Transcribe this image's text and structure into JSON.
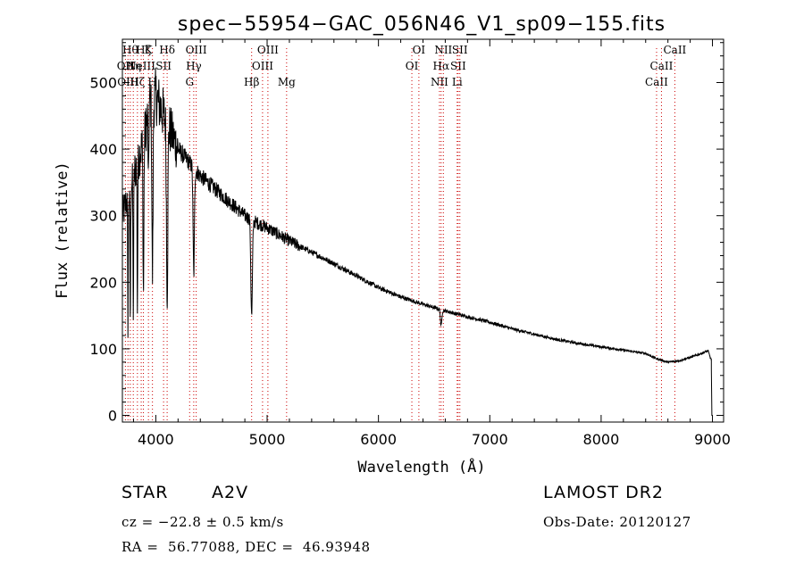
{
  "chart_data": {
    "type": "line",
    "title": "spec−55954−GAC_056N46_V1_sp09−155.fits",
    "xlabel": "Wavelength (Å)",
    "ylabel": "Flux (relative)",
    "xlim": [
      3700,
      9100
    ],
    "ylim": [
      -10,
      565
    ],
    "x_ticks": [
      4000,
      5000,
      6000,
      7000,
      8000,
      9000
    ],
    "y_ticks": [
      0,
      100,
      200,
      300,
      400,
      500
    ],
    "x_tick_labels": [
      "4000",
      "5000",
      "6000",
      "7000",
      "8000",
      "9000"
    ],
    "y_tick_labels": [
      "0",
      "100",
      "200",
      "300",
      "400",
      "500"
    ],
    "grid": false,
    "series": [
      {
        "name": "flux",
        "continuum": [
          [
            3700,
            300
          ],
          [
            3800,
            360
          ],
          [
            3900,
            420
          ],
          [
            3950,
            470
          ],
          [
            4000,
            480
          ],
          [
            4050,
            460
          ],
          [
            4100,
            440
          ],
          [
            4200,
            400
          ],
          [
            4300,
            380
          ],
          [
            4400,
            360
          ],
          [
            4500,
            345
          ],
          [
            4600,
            330
          ],
          [
            4700,
            315
          ],
          [
            4800,
            300
          ],
          [
            4900,
            290
          ],
          [
            5000,
            282
          ],
          [
            5200,
            262
          ],
          [
            5400,
            245
          ],
          [
            5600,
            228
          ],
          [
            5800,
            210
          ],
          [
            6000,
            192
          ],
          [
            6200,
            178
          ],
          [
            6400,
            167
          ],
          [
            6600,
            157
          ],
          [
            6800,
            148
          ],
          [
            7000,
            140
          ],
          [
            7200,
            130
          ],
          [
            7400,
            122
          ],
          [
            7600,
            114
          ],
          [
            7800,
            108
          ],
          [
            8000,
            103
          ],
          [
            8200,
            98
          ],
          [
            8400,
            93
          ],
          [
            8500,
            85
          ],
          [
            8600,
            80
          ],
          [
            8700,
            82
          ],
          [
            8800,
            87
          ],
          [
            8900,
            93
          ],
          [
            8960,
            97
          ],
          [
            8985,
            85
          ]
        ],
        "absorption_lines": [
          {
            "wavelength": 3750,
            "depth": 190,
            "width": 3
          },
          {
            "wavelength": 3771,
            "depth": 200,
            "width": 3
          },
          {
            "wavelength": 3798,
            "depth": 200,
            "width": 3
          },
          {
            "wavelength": 3835,
            "depth": 220,
            "width": 3
          },
          {
            "wavelength": 3889,
            "depth": 230,
            "width": 4
          },
          {
            "wavelength": 3934,
            "depth": 120,
            "width": 3
          },
          {
            "wavelength": 3970,
            "depth": 260,
            "width": 5
          },
          {
            "wavelength": 4102,
            "depth": 250,
            "width": 6
          },
          {
            "wavelength": 4341,
            "depth": 160,
            "width": 6
          },
          {
            "wavelength": 4861,
            "depth": 145,
            "width": 7
          },
          {
            "wavelength": 6563,
            "depth": 25,
            "width": 6
          }
        ],
        "end_drop": [
          [
            8990,
            70
          ],
          [
            8995,
            0
          ],
          [
            9000,
            0
          ]
        ]
      }
    ],
    "line_markers": [
      {
        "wavelength": 3727,
        "label": "OII",
        "row": 2
      },
      {
        "wavelength": 3750,
        "label": "OIII",
        "row": 3
      },
      {
        "wavelength": 3771,
        "label": "Hθ",
        "row": 1
      },
      {
        "wavelength": 3798,
        "label": "Hη",
        "row": 2
      },
      {
        "wavelength": 3835,
        "label": "Hζ",
        "row": 3
      },
      {
        "wavelength": 3869,
        "label": "NeIII",
        "row": 2
      },
      {
        "wavelength": 3889,
        "label": "Hζ",
        "row": 1
      },
      {
        "wavelength": 3934,
        "label": "K",
        "row": 1
      },
      {
        "wavelength": 3970,
        "label": "H",
        "row": 3
      },
      {
        "wavelength": 4070,
        "label": "SII",
        "row": 2
      },
      {
        "wavelength": 4102,
        "label": "Hδ",
        "row": 1
      },
      {
        "wavelength": 4304,
        "label": "G",
        "row": 3
      },
      {
        "wavelength": 4341,
        "label": "Hγ",
        "row": 2
      },
      {
        "wavelength": 4363,
        "label": "OIII",
        "row": 1
      },
      {
        "wavelength": 4861,
        "label": "Hβ",
        "row": 3
      },
      {
        "wavelength": 4959,
        "label": "OIII",
        "row": 2
      },
      {
        "wavelength": 5007,
        "label": "OIII",
        "row": 1
      },
      {
        "wavelength": 5175,
        "label": "Mg",
        "row": 3
      },
      {
        "wavelength": 6300,
        "label": "OI",
        "row": 2
      },
      {
        "wavelength": 6363,
        "label": "OI",
        "row": 1
      },
      {
        "wavelength": 6548,
        "label": "NII",
        "row": 3
      },
      {
        "wavelength": 6563,
        "label": "Hα",
        "row": 2
      },
      {
        "wavelength": 6583,
        "label": "NII",
        "row": 1
      },
      {
        "wavelength": 6716,
        "label": "SII",
        "row": 2
      },
      {
        "wavelength": 6707,
        "label": "Li",
        "row": 3
      },
      {
        "wavelength": 6731,
        "label": "SII",
        "row": 1
      },
      {
        "wavelength": 8498,
        "label": "CaII",
        "row": 3
      },
      {
        "wavelength": 8542,
        "label": "CaII",
        "row": 2
      },
      {
        "wavelength": 8662,
        "label": "CaII",
        "row": 1
      }
    ]
  },
  "info": {
    "object_type": "STAR",
    "subclass": "A2V",
    "survey": "LAMOST DR2",
    "cz": "cz = −22.8 ± 0.5 km/s",
    "obs_date": "Obs-Date: 20120127",
    "coords": "RA =  56.77088, DEC =  46.93948"
  },
  "colors": {
    "axis": "#000000",
    "spectrum": "#000000",
    "marker": "#cc0000",
    "background": "#ffffff"
  }
}
